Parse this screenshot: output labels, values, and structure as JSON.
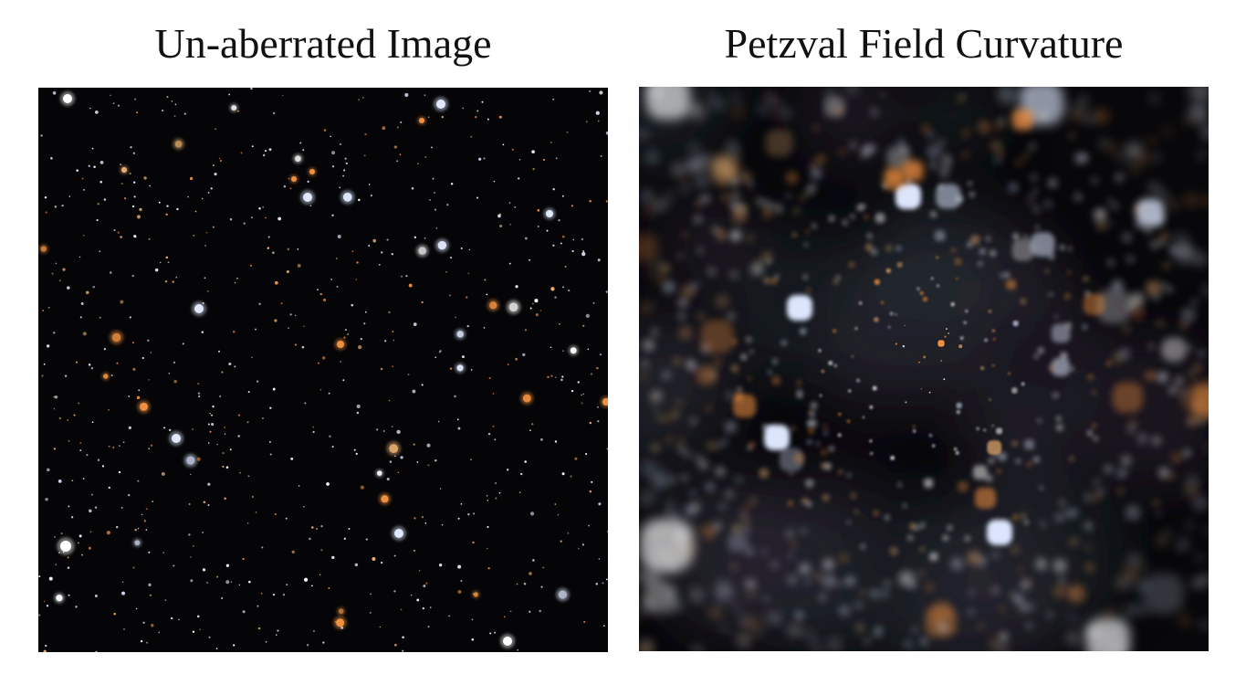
{
  "panels": [
    {
      "title": "Un-aberrated Image",
      "style": "sharp",
      "background_color": "#050507"
    },
    {
      "title": "Petzval Field Curvature",
      "style": "blurred-away-from-center",
      "background_color": "#08080b"
    }
  ],
  "colors": {
    "blue_white_star": "#dfe8ff",
    "orange_star": "#f09040",
    "white_star": "#ffffff",
    "amber_star": "#e8b070"
  }
}
